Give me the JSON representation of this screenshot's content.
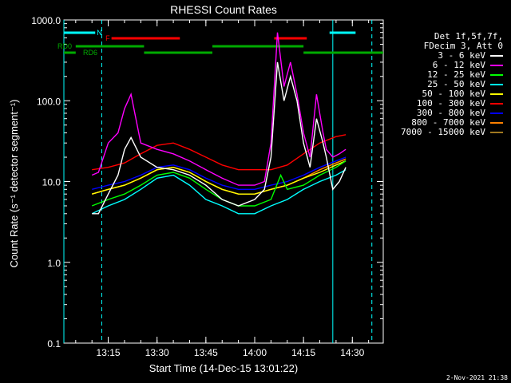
{
  "chart_data": {
    "type": "line",
    "title": "RHESSI Count Rates",
    "xlabel": "Start Time (14-Dec-15 13:01:22)",
    "ylabel": "Count Rate (s⁻¹ detector segment⁻¹)",
    "yscale": "log",
    "ylim": [
      0.1,
      1000.0
    ],
    "xlim": [
      "13:01:22",
      "14:39:30"
    ],
    "x_ticks": [
      "13:15",
      "13:30",
      "13:45",
      "14:00",
      "14:15",
      "14:30"
    ],
    "y_ticks": [
      "0.1",
      "1.0",
      "10.0",
      "100.0",
      "1000.0"
    ],
    "legend": {
      "placement": "right",
      "header": [
        "Det 1f,5f,7f,",
        "FDecim 3, Att 0"
      ]
    },
    "series": [
      {
        "name": "3 - 6 keV",
        "color": "#ffffff",
        "x": [
          "13:10",
          "13:12",
          "13:15",
          "13:18",
          "13:20",
          "13:22",
          "13:25",
          "13:30",
          "13:35",
          "13:40",
          "13:45",
          "13:50",
          "13:55",
          "14:00",
          "14:03",
          "14:05",
          "14:07",
          "14:09",
          "14:11",
          "14:13",
          "14:15",
          "14:17",
          "14:19",
          "14:21",
          "14:22",
          "14:24",
          "14:26",
          "14:28"
        ],
        "y": [
          4,
          4,
          7,
          12,
          25,
          35,
          20,
          15,
          14,
          12,
          9,
          6,
          5,
          6,
          8,
          20,
          300,
          100,
          200,
          100,
          30,
          15,
          60,
          30,
          20,
          8,
          10,
          15
        ]
      },
      {
        "name": "6 - 12 keV",
        "color": "#ff00ff",
        "x": [
          "13:10",
          "13:12",
          "13:15",
          "13:18",
          "13:20",
          "13:22",
          "13:25",
          "13:30",
          "13:35",
          "13:40",
          "13:45",
          "13:50",
          "13:55",
          "14:00",
          "14:03",
          "14:05",
          "14:07",
          "14:09",
          "14:11",
          "14:13",
          "14:15",
          "14:17",
          "14:19",
          "14:21",
          "14:22",
          "14:24",
          "14:26",
          "14:28"
        ],
        "y": [
          12,
          13,
          30,
          40,
          80,
          120,
          30,
          25,
          22,
          18,
          14,
          11,
          9,
          9,
          10,
          30,
          700,
          150,
          300,
          120,
          40,
          20,
          120,
          40,
          25,
          20,
          22,
          25
        ]
      },
      {
        "name": "12 - 25 keV",
        "color": "#00ff00",
        "x": [
          "13:10",
          "13:15",
          "13:20",
          "13:25",
          "13:30",
          "13:35",
          "13:40",
          "13:45",
          "13:50",
          "13:55",
          "14:00",
          "14:05",
          "14:08",
          "14:10",
          "14:15",
          "14:20",
          "14:25",
          "14:28"
        ],
        "y": [
          5,
          6,
          7,
          9,
          12,
          13,
          11,
          8,
          6,
          5,
          5,
          6,
          12,
          8,
          9,
          12,
          15,
          18
        ]
      },
      {
        "name": "25 - 50 keV",
        "color": "#00ffff",
        "x": [
          "13:10",
          "13:15",
          "13:20",
          "13:25",
          "13:30",
          "13:35",
          "13:40",
          "13:45",
          "13:50",
          "13:55",
          "14:00",
          "14:05",
          "14:10",
          "14:15",
          "14:20",
          "14:25",
          "14:28"
        ],
        "y": [
          4,
          5,
          6,
          8,
          11,
          12,
          9,
          6,
          5,
          4,
          4,
          5,
          6,
          8,
          10,
          12,
          14
        ]
      },
      {
        "name": "50 - 100 keV",
        "color": "#ffff00",
        "x": [
          "13:10",
          "13:15",
          "13:20",
          "13:25",
          "13:30",
          "13:35",
          "13:40",
          "13:45",
          "13:50",
          "13:55",
          "14:00",
          "14:05",
          "14:10",
          "14:15",
          "14:20",
          "14:25",
          "14:28"
        ],
        "y": [
          7,
          8,
          9,
          11,
          14,
          15,
          13,
          10,
          8,
          7,
          7,
          8,
          9,
          11,
          13,
          16,
          18
        ]
      },
      {
        "name": "100 - 300 keV",
        "color": "#ff0000",
        "x": [
          "13:10",
          "13:15",
          "13:20",
          "13:25",
          "13:30",
          "13:35",
          "13:40",
          "13:45",
          "13:50",
          "13:55",
          "14:00",
          "14:05",
          "14:10",
          "14:15",
          "14:20",
          "14:25",
          "14:28"
        ],
        "y": [
          14,
          15,
          17,
          22,
          28,
          30,
          25,
          20,
          16,
          14,
          14,
          14,
          16,
          22,
          30,
          36,
          38
        ]
      },
      {
        "name": "300 - 800 keV",
        "color": "#0000ff",
        "x": [
          "13:10",
          "13:15",
          "13:20",
          "13:25",
          "13:30",
          "13:35",
          "13:40",
          "13:45",
          "13:50",
          "13:55",
          "14:00",
          "14:05",
          "14:10",
          "14:15",
          "14:20",
          "14:25",
          "14:28"
        ],
        "y": [
          8,
          9,
          10,
          12,
          15,
          16,
          14,
          11,
          9,
          8,
          8,
          9,
          10,
          12,
          15,
          18,
          20
        ]
      },
      {
        "name": "800 - 7000 keV",
        "color": "#ff8000",
        "x": [
          "13:10",
          "13:15",
          "13:20",
          "13:25",
          "13:30",
          "13:35",
          "13:40",
          "13:45",
          "13:50",
          "13:55",
          "14:00",
          "14:05",
          "14:10",
          "14:15",
          "14:20",
          "14:25",
          "14:28"
        ],
        "y": [
          7,
          8,
          9,
          11,
          14,
          15,
          13,
          10,
          8,
          7,
          7,
          8,
          9,
          11,
          14,
          17,
          19
        ]
      },
      {
        "name": "7000 - 15000 keV",
        "color": "#a07820",
        "x": [
          "13:10",
          "13:15",
          "13:20",
          "13:25",
          "13:30",
          "13:35",
          "13:40",
          "13:45",
          "13:50",
          "13:55",
          "14:00",
          "14:05",
          "14:10",
          "14:15",
          "14:20",
          "14:25",
          "14:28"
        ],
        "y": [
          7,
          8,
          9,
          11,
          14,
          15,
          13,
          10,
          8,
          7,
          7,
          8,
          9,
          11,
          14,
          17,
          19
        ]
      }
    ],
    "annotations": [
      {
        "label": "N",
        "color": "#00ffff",
        "intervals": [
          [
            "13:01:22",
            "13:11"
          ],
          [
            "14:23",
            "14:31"
          ]
        ]
      },
      {
        "label": "F",
        "color": "#ff0000",
        "intervals": [
          [
            "13:16",
            "13:37"
          ],
          [
            "14:06",
            "14:16"
          ]
        ]
      },
      {
        "label": "RD0",
        "color": "#00aa00",
        "intervals": [
          [
            "13:05",
            "13:26"
          ],
          [
            "13:47",
            "14:15"
          ]
        ]
      },
      {
        "label": "RD6",
        "color": "#00aa00",
        "intervals": [
          [
            "13:01:22",
            "13:05"
          ],
          [
            "13:26",
            "13:47"
          ],
          [
            "14:15",
            "14:39:30"
          ]
        ]
      }
    ],
    "vlines": [
      {
        "time": "13:01:22",
        "color": "#00ffff",
        "style": "solid"
      },
      {
        "time": "13:13",
        "color": "#00ffff",
        "style": "dashed"
      },
      {
        "time": "14:24",
        "color": "#00ffff",
        "style": "solid"
      },
      {
        "time": "14:36",
        "color": "#00ffff",
        "style": "dashed"
      }
    ]
  },
  "footer": "2-Nov-2021 21:38"
}
